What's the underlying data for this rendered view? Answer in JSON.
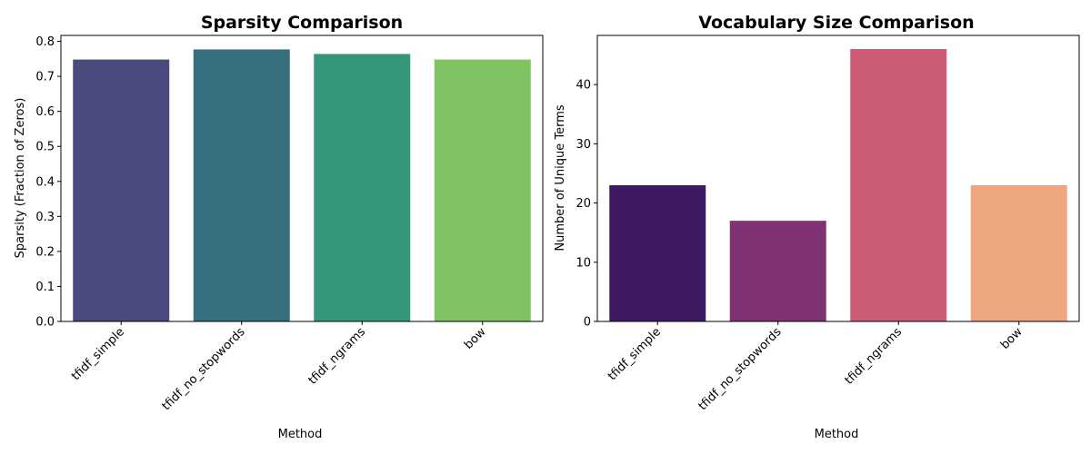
{
  "chart_data": [
    {
      "type": "bar",
      "title": "Sparsity Comparison",
      "xlabel": "Method",
      "ylabel": "Sparsity (Fraction of Zeros)",
      "categories": [
        "tfidf_simple",
        "tfidf_no_stopwords",
        "tfidf_ngrams",
        "bow"
      ],
      "values": [
        0.748,
        0.777,
        0.764,
        0.748
      ],
      "colors": [
        "#4a4a7d",
        "#36707f",
        "#34977b",
        "#80c363"
      ],
      "ylim": [
        0,
        0.817
      ],
      "yticks": [
        0.0,
        0.1,
        0.2,
        0.3,
        0.4,
        0.5,
        0.6,
        0.7,
        0.8
      ],
      "ytick_labels": [
        "0.0",
        "0.1",
        "0.2",
        "0.3",
        "0.4",
        "0.5",
        "0.6",
        "0.7",
        "0.8"
      ],
      "grid": false,
      "legend": "none"
    },
    {
      "type": "bar",
      "title": "Vocabulary Size Comparison",
      "xlabel": "Method",
      "ylabel": "Number of Unique Terms",
      "categories": [
        "tfidf_simple",
        "tfidf_no_stopwords",
        "tfidf_ngrams",
        "bow"
      ],
      "values": [
        23,
        17,
        46,
        23
      ],
      "colors": [
        "#3e1a63",
        "#803374",
        "#cb5c73",
        "#eda67f"
      ],
      "ylim": [
        0,
        48.3
      ],
      "yticks": [
        0,
        10,
        20,
        30,
        40
      ],
      "ytick_labels": [
        "0",
        "10",
        "20",
        "30",
        "40"
      ],
      "grid": false,
      "legend": "none"
    }
  ]
}
